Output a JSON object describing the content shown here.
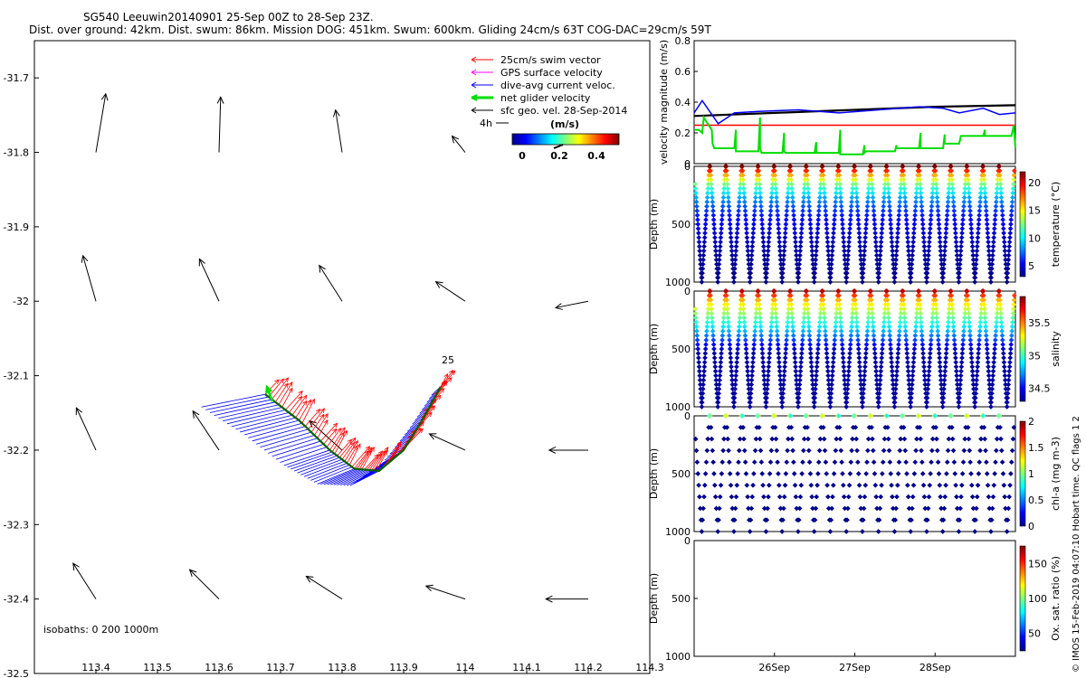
{
  "header": {
    "line1": "SG540 Leeuwin20140901 25-Sep 00Z to 28-Sep 23Z.",
    "line2": "Dist. over ground: 42km. Dist. swum: 86km. Mission DOG: 451km. Swum: 600km. Gliding 24cm/s 63T COG-DAC=29cm/s 59T"
  },
  "credit": "© IMOS 15-Feb-2019 04:07:10 Hobart time. QC flags 1  2",
  "colors": {
    "swim_vector": "#ff0000",
    "gps_velocity": "#ff00ff",
    "dac": "#0000ff",
    "net_glider": "#00dd00",
    "geo_vel": "#000000",
    "track": "#006400"
  },
  "chart_data": [
    {
      "type": "vector-map",
      "xlim": [
        113.3,
        114.3
      ],
      "ylim": [
        -32.5,
        -31.65
      ],
      "x_ticks": [
        "113.4",
        "113.5",
        "113.6",
        "113.7",
        "113.8",
        "113.9",
        "114",
        "114.1",
        "114.2",
        "114.3"
      ],
      "y_ticks": [
        "-31.7",
        "-31.8",
        "-31.9",
        "-32",
        "-32.1",
        "-32.2",
        "-32.3",
        "-32.4",
        "-32.5"
      ],
      "legend": [
        {
          "label": "25cm/s swim vector",
          "color": "#ff0000"
        },
        {
          "label": "GPS surface velocity",
          "color": "#ff00ff"
        },
        {
          "label": "dive-avg current veloc.",
          "color": "#0000ff"
        },
        {
          "label": "net glider velocity",
          "color": "#00dd00"
        },
        {
          "label": "sfc geo. vel. 28-Sep-2014",
          "color": "#000000"
        }
      ],
      "legend_ref_label": "4h",
      "colorbar": {
        "title": "(m/s)",
        "ticks": [
          "0",
          "0.2",
          "0.4"
        ],
        "range": [
          0,
          0.5
        ]
      },
      "annotations": [
        "isobaths: 0   200  1000m",
        "25"
      ],
      "geo_vectors": [
        {
          "lon": 113.4,
          "lat": -31.8,
          "u": 0.03,
          "v": 0.18
        },
        {
          "lon": 113.6,
          "lat": -31.8,
          "u": 0.005,
          "v": 0.17
        },
        {
          "lon": 113.8,
          "lat": -31.8,
          "u": -0.02,
          "v": 0.13
        },
        {
          "lon": 114.0,
          "lat": -31.8,
          "u": -0.04,
          "v": 0.05
        },
        {
          "lon": 113.4,
          "lat": -32.0,
          "u": -0.04,
          "v": 0.14
        },
        {
          "lon": 113.6,
          "lat": -32.0,
          "u": -0.06,
          "v": 0.13
        },
        {
          "lon": 113.8,
          "lat": -32.0,
          "u": -0.07,
          "v": 0.11
        },
        {
          "lon": 114.0,
          "lat": -32.0,
          "u": -0.09,
          "v": 0.06
        },
        {
          "lon": 114.2,
          "lat": -32.0,
          "u": -0.1,
          "v": -0.02
        },
        {
          "lon": 113.4,
          "lat": -32.2,
          "u": -0.06,
          "v": 0.13
        },
        {
          "lon": 113.6,
          "lat": -32.2,
          "u": -0.08,
          "v": 0.12
        },
        {
          "lon": 113.8,
          "lat": -32.2,
          "u": -0.1,
          "v": 0.09
        },
        {
          "lon": 114.0,
          "lat": -32.2,
          "u": -0.11,
          "v": 0.05
        },
        {
          "lon": 114.2,
          "lat": -32.2,
          "u": -0.12,
          "v": 0.0
        },
        {
          "lon": 113.4,
          "lat": -32.4,
          "u": -0.07,
          "v": 0.11
        },
        {
          "lon": 113.6,
          "lat": -32.4,
          "u": -0.09,
          "v": 0.09
        },
        {
          "lon": 113.8,
          "lat": -32.4,
          "u": -0.11,
          "v": 0.07
        },
        {
          "lon": 114.0,
          "lat": -32.4,
          "u": -0.12,
          "v": 0.04
        },
        {
          "lon": 114.2,
          "lat": -32.4,
          "u": -0.13,
          "v": 0.0
        }
      ],
      "glider_track": [
        {
          "lon": 113.675,
          "lat": -32.125
        },
        {
          "lon": 113.73,
          "lat": -32.16
        },
        {
          "lon": 113.78,
          "lat": -32.2
        },
        {
          "lon": 113.82,
          "lat": -32.225
        },
        {
          "lon": 113.86,
          "lat": -32.228
        },
        {
          "lon": 113.9,
          "lat": -32.2
        },
        {
          "lon": 113.93,
          "lat": -32.16
        },
        {
          "lon": 113.96,
          "lat": -32.115
        }
      ]
    },
    {
      "type": "line",
      "ylabel": "velocity magnitude (m/s)",
      "xlim": [
        25.0,
        29.0
      ],
      "ylim": [
        0,
        0.8
      ],
      "y_ticks": [
        "0",
        "0.2",
        "0.4",
        "0.6",
        "0.8"
      ],
      "x_ticks": [
        {
          "x": 26,
          "label": "26Sep"
        },
        {
          "x": 27,
          "label": "27Sep"
        },
        {
          "x": 28,
          "label": "28Sep"
        }
      ],
      "series": [
        {
          "color": "#000000",
          "x": [
            25.0,
            26.0,
            27.0,
            28.0,
            29.0
          ],
          "values": [
            0.31,
            0.33,
            0.35,
            0.37,
            0.38
          ]
        },
        {
          "color": "#0000ff",
          "x": [
            25.0,
            25.1,
            25.3,
            25.5,
            25.8,
            26.3,
            26.8,
            27.3,
            27.8,
            28.1,
            28.3,
            28.6,
            28.8,
            29.0
          ],
          "values": [
            0.33,
            0.41,
            0.26,
            0.33,
            0.34,
            0.35,
            0.33,
            0.35,
            0.37,
            0.36,
            0.33,
            0.36,
            0.32,
            0.33
          ]
        },
        {
          "color": "#ff0000",
          "x": [
            25.0,
            29.0
          ],
          "values": [
            0.25,
            0.25
          ]
        },
        {
          "color": "#00dd00",
          "x": [
            25.0,
            25.06,
            25.1,
            25.12,
            25.18,
            25.22,
            25.23,
            25.25,
            25.5,
            25.52,
            25.52,
            25.54,
            25.8,
            25.82,
            25.82,
            25.84,
            26.1,
            26.12,
            26.12,
            26.14,
            26.5,
            26.52,
            26.52,
            26.54,
            26.8,
            26.82,
            26.82,
            26.84,
            27.1,
            27.12,
            27.12,
            27.14,
            27.5,
            27.52,
            27.52,
            27.54,
            27.8,
            27.82,
            27.82,
            27.84,
            28.1,
            28.12,
            28.12,
            28.14,
            28.3,
            28.32,
            28.32,
            28.34,
            28.6,
            28.62,
            28.62,
            28.64,
            28.95,
            28.98,
            29.0
          ],
          "values": [
            0.22,
            0.22,
            0.2,
            0.3,
            0.25,
            0.22,
            0.13,
            0.1,
            0.1,
            0.22,
            0.08,
            0.08,
            0.08,
            0.3,
            0.1,
            0.07,
            0.07,
            0.2,
            0.08,
            0.07,
            0.07,
            0.14,
            0.07,
            0.07,
            0.07,
            0.22,
            0.06,
            0.06,
            0.06,
            0.12,
            0.07,
            0.08,
            0.08,
            0.12,
            0.1,
            0.1,
            0.1,
            0.2,
            0.1,
            0.1,
            0.1,
            0.19,
            0.13,
            0.13,
            0.13,
            0.18,
            0.18,
            0.18,
            0.18,
            0.22,
            0.18,
            0.18,
            0.18,
            0.25,
            0.1
          ]
        }
      ]
    },
    {
      "type": "scatter",
      "variable": "temperature",
      "ylabel": "Depth (m)",
      "colorbar_label": "temperature (°C)",
      "colorbar_ticks": [
        "5",
        "10",
        "15",
        "20"
      ],
      "colorbar_range": [
        3,
        22
      ],
      "xlim": [
        25.0,
        29.0
      ],
      "ylim": [
        1000,
        0
      ],
      "y_ticks": [
        "0",
        "500",
        "1000"
      ],
      "dive_count": 20,
      "max_depth": 1000
    },
    {
      "type": "scatter",
      "variable": "salinity",
      "ylabel": "Depth (m)",
      "colorbar_label": "salinity",
      "colorbar_ticks": [
        "34.5",
        "35",
        "35.5"
      ],
      "colorbar_range": [
        34.3,
        35.9
      ],
      "xlim": [
        25.0,
        29.0
      ],
      "ylim": [
        1000,
        0
      ],
      "y_ticks": [
        "0",
        "500",
        "1000"
      ],
      "dive_count": 20,
      "max_depth": 1000
    },
    {
      "type": "scatter",
      "variable": "chl-a",
      "ylabel": "Depth (m)",
      "colorbar_label": "chl-a (mg m-3)",
      "colorbar_ticks": [
        "0",
        "0.5",
        "1",
        "1.5",
        "2"
      ],
      "colorbar_range": [
        0,
        2
      ],
      "xlim": [
        25.0,
        29.0
      ],
      "ylim": [
        1000,
        0
      ],
      "y_ticks": [
        "0",
        "500",
        "1000"
      ],
      "dive_count": 20,
      "max_depth": 1000
    },
    {
      "type": "scatter",
      "variable": "oxygen saturation",
      "ylabel": "Depth (m)",
      "colorbar_label": "Ox. sat. ratio (%)",
      "colorbar_ticks": [
        "50",
        "100",
        "150"
      ],
      "colorbar_range": [
        25,
        175
      ],
      "xlim": [
        25.0,
        29.0
      ],
      "ylim": [
        1000,
        0
      ],
      "y_ticks": [
        "0",
        "500",
        "1000"
      ],
      "x_ticks": [
        {
          "x": 26,
          "label": "26Sep"
        },
        {
          "x": 27,
          "label": "27Sep"
        },
        {
          "x": 28,
          "label": "28Sep"
        }
      ],
      "points": []
    }
  ]
}
